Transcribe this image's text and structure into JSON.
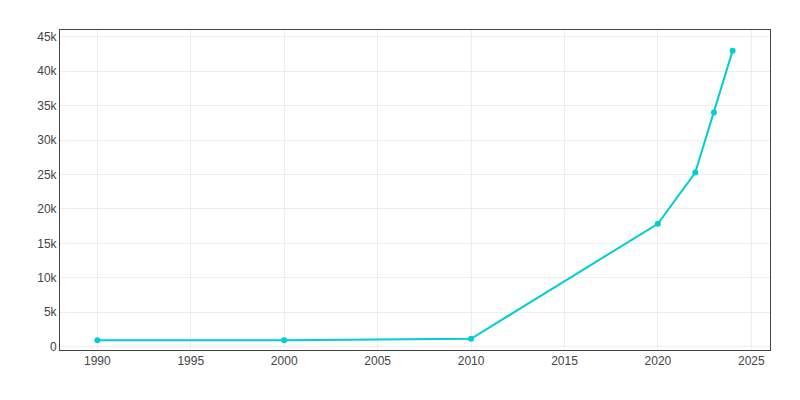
{
  "chart_data": {
    "type": "line",
    "x": [
      1990,
      2000,
      2010,
      2020,
      2022,
      2023,
      2024
    ],
    "series": [
      {
        "color": "#00CED1",
        "marker": "circle",
        "values": [
          900,
          919,
          1134,
          17848,
          25278,
          34000,
          43000
        ]
      }
    ],
    "xlim": [
      1988,
      2026
    ],
    "xticks": [
      1990,
      1995,
      2000,
      2005,
      2010,
      2015,
      2020,
      2025
    ],
    "ylim": [
      -500,
      46000
    ],
    "yticks": [
      0,
      {
        "value": 5000,
        "label": "5k"
      },
      {
        "value": 10000,
        "label": "10k"
      },
      {
        "value": 15000,
        "label": "15k"
      },
      {
        "value": 20000,
        "label": "20k"
      },
      {
        "value": 25000,
        "label": "25k"
      },
      {
        "value": 30000,
        "label": "30k"
      },
      {
        "value": 35000,
        "label": "35k"
      },
      {
        "value": 40000,
        "label": "40k"
      },
      {
        "value": 45000,
        "label": "45k"
      }
    ],
    "grid": true
  }
}
